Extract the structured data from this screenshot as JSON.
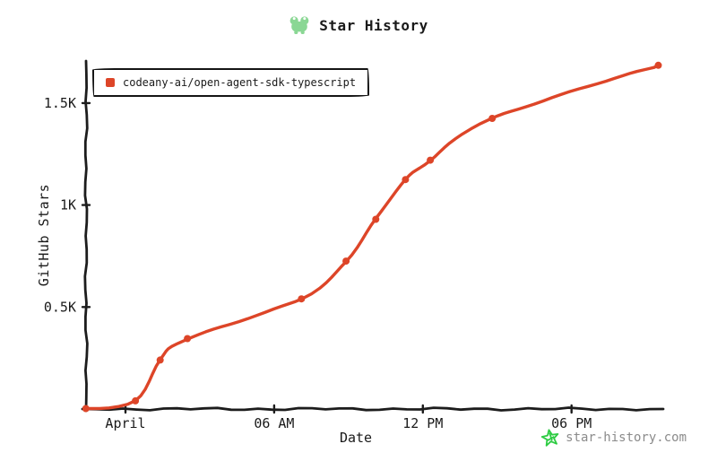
{
  "header": {
    "title": "Star History"
  },
  "footer": {
    "credit": "star-history.com"
  },
  "colors": {
    "line": "#dd4528",
    "axis": "#1c1c1c",
    "logo_green": "#8ad794",
    "star_green": "#2fcc44",
    "credit_gray": "#8b8b8b"
  },
  "chart_data": {
    "type": "line",
    "title": "Star History",
    "xlabel": "Date",
    "ylabel": "GitHub Stars",
    "grid": false,
    "legend_position": "top-left",
    "x_unit": "hours relative to 'April' (midnight) tick",
    "x_range_hours": [
      -1.8,
      22.2
    ],
    "ylim": [
      0,
      1760
    ],
    "x_ticks": [
      {
        "label": "April",
        "hours": 0
      },
      {
        "label": "06 AM",
        "hours": 6
      },
      {
        "label": "12 PM",
        "hours": 12
      },
      {
        "label": "06 PM",
        "hours": 18
      }
    ],
    "y_ticks": [
      {
        "label": "0.5K",
        "value": 500
      },
      {
        "label": "1K",
        "value": 1000
      },
      {
        "label": "1.5K",
        "value": 1500
      }
    ],
    "series": [
      {
        "name": "codeany-ai/open-agent-sdk-typescript",
        "color": "#dd4528",
        "points": [
          {
            "hours": -1.6,
            "stars": 2
          },
          {
            "hours": 0.4,
            "stars": 40
          },
          {
            "hours": 1.4,
            "stars": 240
          },
          {
            "hours": 2.5,
            "stars": 345
          },
          {
            "hours": 7.1,
            "stars": 540
          },
          {
            "hours": 8.9,
            "stars": 725
          },
          {
            "hours": 10.1,
            "stars": 930
          },
          {
            "hours": 11.3,
            "stars": 1125
          },
          {
            "hours": 12.3,
            "stars": 1220
          },
          {
            "hours": 14.8,
            "stars": 1425
          },
          {
            "hours": 21.5,
            "stars": 1685
          }
        ]
      }
    ]
  }
}
